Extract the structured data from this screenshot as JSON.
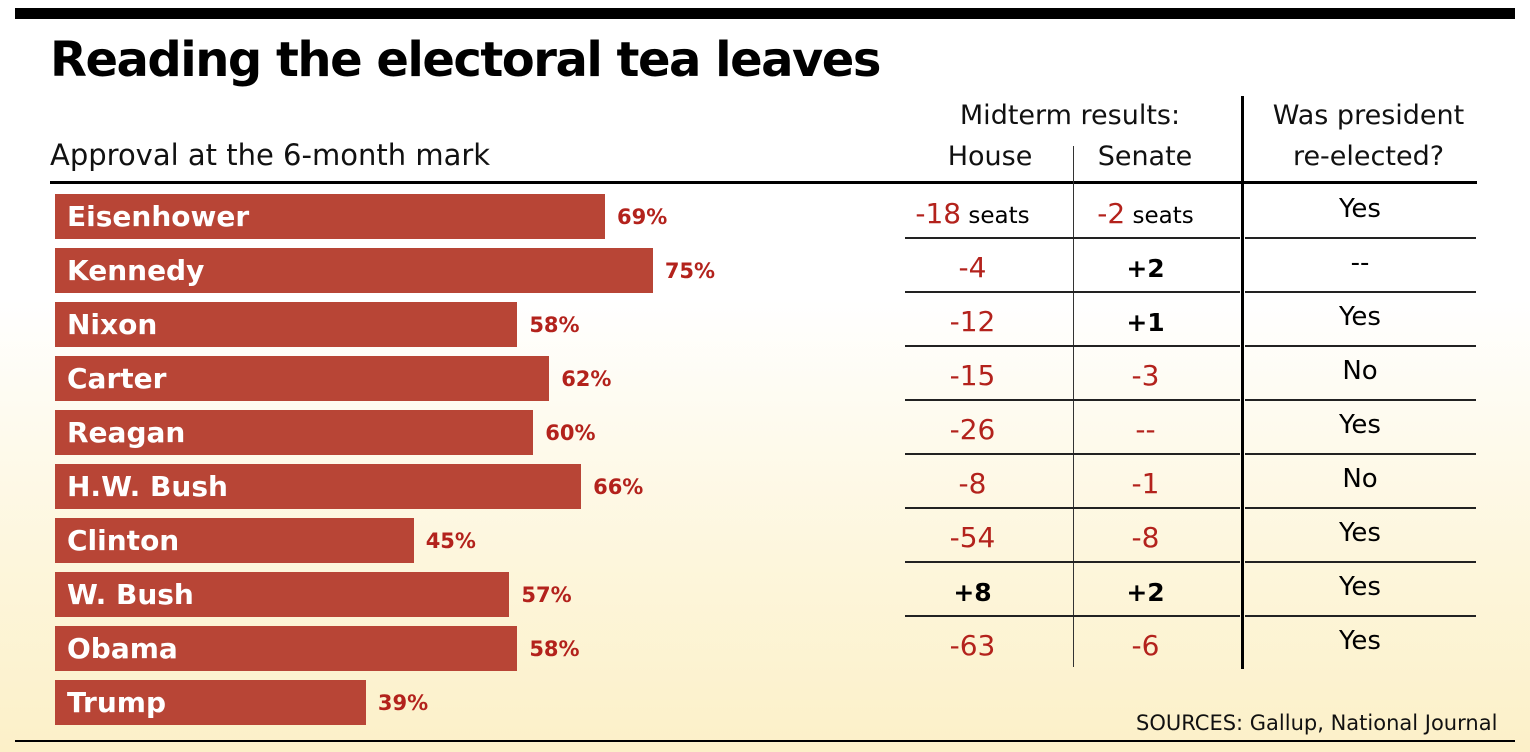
{
  "title": "Reading the electoral tea leaves",
  "subtitle": "Approval at the 6-month mark",
  "headers": {
    "midterm": "Midterm results:",
    "house": "House",
    "senate": "Senate",
    "reelected_line1": "Was president",
    "reelected_line2": "re-elected?"
  },
  "source": "SOURCES: Gallup, National Journal",
  "colors": {
    "bar": "#b84536",
    "negative_text": "#b3221c",
    "background_bottom": "#fcf0c8"
  },
  "rows": [
    {
      "president": "Eisenhower",
      "approval": "69%",
      "house": "-18",
      "house_unit": "seats",
      "senate": "-2",
      "senate_unit": "seats",
      "reelected": "Yes"
    },
    {
      "president": "Kennedy",
      "approval": "75%",
      "house": "-4",
      "senate": "+2",
      "reelected": "--"
    },
    {
      "president": "Nixon",
      "approval": "58%",
      "house": "-12",
      "senate": "+1",
      "reelected": "Yes"
    },
    {
      "president": "Carter",
      "approval": "62%",
      "house": "-15",
      "senate": "-3",
      "reelected": "No"
    },
    {
      "president": "Reagan",
      "approval": "60%",
      "house": "-26",
      "senate": "--",
      "reelected": "Yes"
    },
    {
      "president": "H.W. Bush",
      "approval": "66%",
      "house": "-8",
      "senate": "-1",
      "reelected": "No"
    },
    {
      "president": "Clinton",
      "approval": "45%",
      "house": "-54",
      "senate": "-8",
      "reelected": "Yes"
    },
    {
      "president": "W. Bush",
      "approval": "57%",
      "house": "+8",
      "senate": "+2",
      "reelected": "Yes"
    },
    {
      "president": "Obama",
      "approval": "58%",
      "house": "-63",
      "senate": "-6",
      "reelected": "Yes"
    },
    {
      "president": "Trump",
      "approval": "39%"
    }
  ],
  "chart_data": {
    "type": "bar",
    "orientation": "horizontal",
    "title": "Reading the electoral tea leaves",
    "subtitle": "Approval at the 6-month mark",
    "categories": [
      "Eisenhower",
      "Kennedy",
      "Nixon",
      "Carter",
      "Reagan",
      "H.W. Bush",
      "Clinton",
      "W. Bush",
      "Obama",
      "Trump"
    ],
    "values": [
      69,
      75,
      58,
      62,
      60,
      66,
      45,
      57,
      58,
      39
    ],
    "unit": "%"
  }
}
